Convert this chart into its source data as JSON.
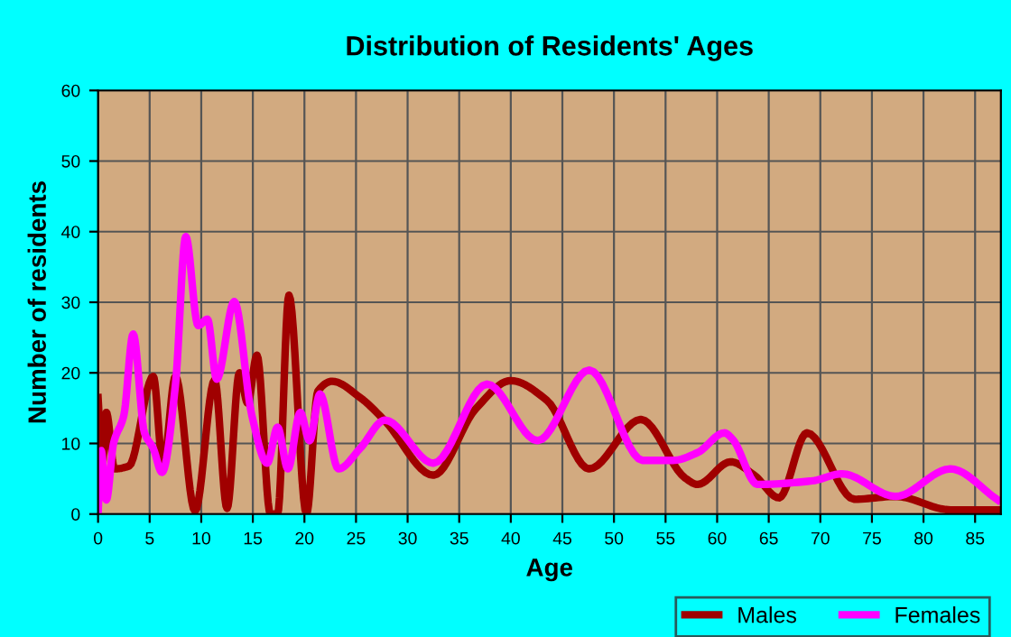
{
  "chart_data": {
    "type": "line",
    "title": "Distribution of Residents' Ages",
    "xlabel": "Age",
    "ylabel": "Number of residents",
    "xlim": [
      0,
      87.5
    ],
    "ylim": [
      0,
      60
    ],
    "xticks": [
      0,
      5,
      10,
      15,
      20,
      25,
      30,
      35,
      40,
      45,
      50,
      55,
      60,
      65,
      70,
      75,
      80,
      85
    ],
    "yticks": [
      0,
      10,
      20,
      30,
      40,
      50,
      60
    ],
    "grid": true,
    "legend": "bottom right",
    "marker": "none",
    "line_style": "solid",
    "series": [
      {
        "name": "Males",
        "color": "#a00000",
        "x": [
          0,
          0.4,
          0.8,
          1.6,
          3.0,
          5.35,
          6.3,
          7.5,
          9.4,
          11.3,
          12.5,
          13.7,
          14.5,
          15.4,
          16.7,
          17.4,
          18.5,
          20.2,
          21.3,
          22.7,
          25.4,
          27.8,
          32.5,
          36.6,
          40.0,
          43.5,
          47.6,
          52.6,
          56.9,
          58.1,
          61.3,
          63.6,
          66.0,
          68.7,
          73.3,
          77.3,
          82.6,
          87.2
        ],
        "values": [
          16.5,
          6.8,
          14.4,
          6.4,
          6.8,
          19.5,
          6.8,
          19.5,
          0.4,
          19,
          0.8,
          20,
          15.7,
          22.5,
          0,
          0,
          31,
          0,
          17.4,
          18.8,
          16.5,
          13.2,
          5.5,
          14.9,
          18.9,
          16.1,
          6.4,
          13.4,
          5.1,
          4.2,
          7.4,
          5.5,
          2.3,
          11.5,
          2.1,
          2.5,
          0.6,
          0.6
        ]
      },
      {
        "name": "Females",
        "color": "#ff00ff",
        "x": [
          0,
          0.3,
          0.8,
          1.5,
          2.5,
          3.4,
          4.5,
          5.35,
          6.2,
          7.5,
          8.5,
          9.7,
          10.6,
          11.5,
          13.2,
          14.9,
          16.4,
          17.4,
          18.4,
          19.6,
          20.5,
          21.5,
          23.3,
          25.4,
          27.8,
          32.5,
          37.7,
          42.6,
          47.6,
          52.8,
          55.7,
          58.1,
          60.7,
          61.5,
          63.9,
          69.2,
          72.1,
          77.3,
          82.6,
          87.2
        ],
        "values": [
          0,
          9,
          2,
          10,
          14,
          25.5,
          11.5,
          9.3,
          5.9,
          18.3,
          39.3,
          26.7,
          27.6,
          19.1,
          30.1,
          14,
          7.2,
          12.3,
          6.4,
          14.4,
          10.4,
          17,
          6.4,
          9.3,
          13.3,
          7.2,
          18.4,
          10.4,
          20.4,
          7.6,
          7.6,
          8.7,
          11.5,
          10.6,
          4.2,
          4.7,
          5.7,
          2.5,
          6.4,
          2.0
        ]
      }
    ]
  }
}
